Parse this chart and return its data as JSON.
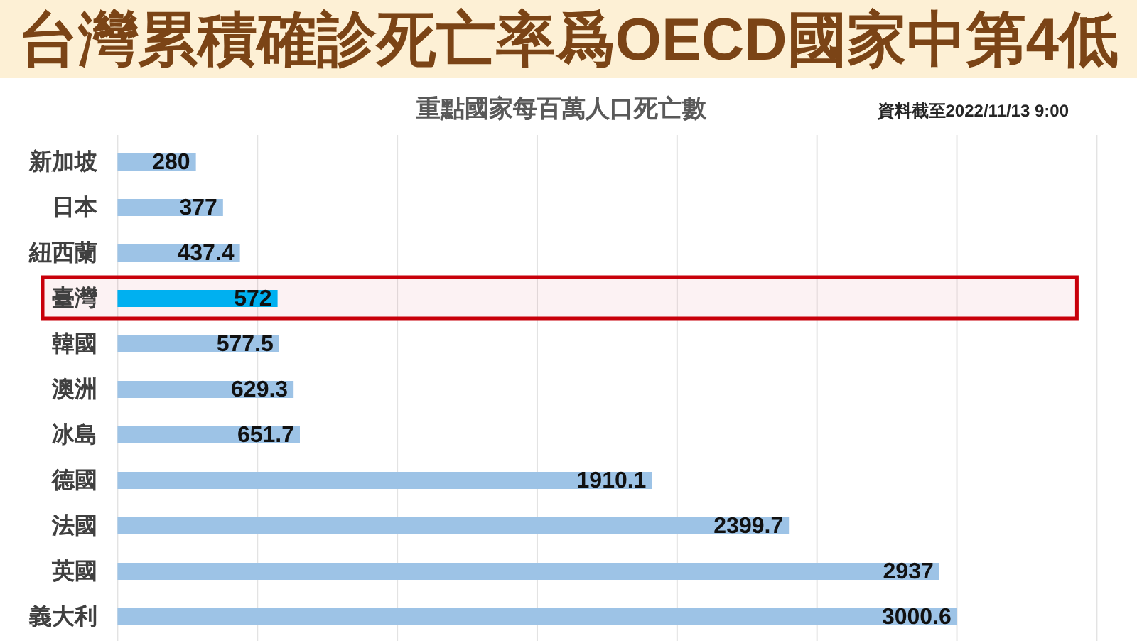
{
  "chart_data": {
    "type": "bar",
    "orientation": "horizontal",
    "title": "台灣累積確診死亡率爲OECD國家中第4低",
    "subtitle": "重點國家每百萬人口死亡數",
    "annotations": [
      "資料截至2022/11/13 9:00"
    ],
    "categories": [
      "新加坡",
      "日本",
      "紐西蘭",
      "臺灣",
      "韓國",
      "澳洲",
      "冰島",
      "德國",
      "法國",
      "英國",
      "義大利"
    ],
    "values": [
      280,
      377,
      437.4,
      572,
      577.5,
      629.3,
      651.7,
      1910.1,
      2399.7,
      2937,
      3000.6
    ],
    "colors": [
      "#9dc3e6",
      "#9dc3e6",
      "#9dc3e6",
      "#00b0f0",
      "#9dc3e6",
      "#9dc3e6",
      "#9dc3e6",
      "#9dc3e6",
      "#9dc3e6",
      "#9dc3e6",
      "#9dc3e6"
    ],
    "bands": [
      {
        "axis": "y",
        "from": "臺灣",
        "to": "臺灣",
        "color": "#c8000a"
      }
    ],
    "data_labels": true,
    "xlim": [
      0,
      3500
    ],
    "xticks": [
      {
        "value": 0,
        "label": null
      },
      {
        "value": 500,
        "label": null
      },
      {
        "value": 1000,
        "label": null
      },
      {
        "value": 1500,
        "label": null
      },
      {
        "value": 2000,
        "label": null
      },
      {
        "value": 2500,
        "label": null
      },
      {
        "value": 3000,
        "label": null
      },
      {
        "value": 3500,
        "label": null
      }
    ],
    "grid": "x",
    "tick_labels": "y"
  }
}
